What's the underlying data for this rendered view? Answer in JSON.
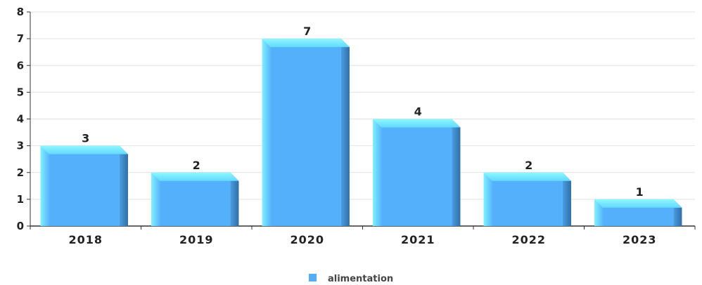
{
  "chart_data": {
    "type": "bar",
    "categories": [
      "2018",
      "2019",
      "2020",
      "2021",
      "2022",
      "2023"
    ],
    "series": [
      {
        "name": "alimentation",
        "values": [
          3,
          2,
          7,
          4,
          2,
          1
        ]
      }
    ],
    "title": "",
    "xlabel": "",
    "ylabel": "",
    "ylim": [
      0,
      8
    ],
    "yticks": [
      "0",
      "1",
      "2",
      "3",
      "4",
      "5",
      "6",
      "7",
      "8"
    ],
    "grid": true,
    "legend_position": "bottom-center",
    "colors": {
      "bar": "#55b0fb",
      "bar_top": "#7ef2ff",
      "bar_side": "#3b87c9",
      "legend_swatch": "#55aef5"
    }
  }
}
